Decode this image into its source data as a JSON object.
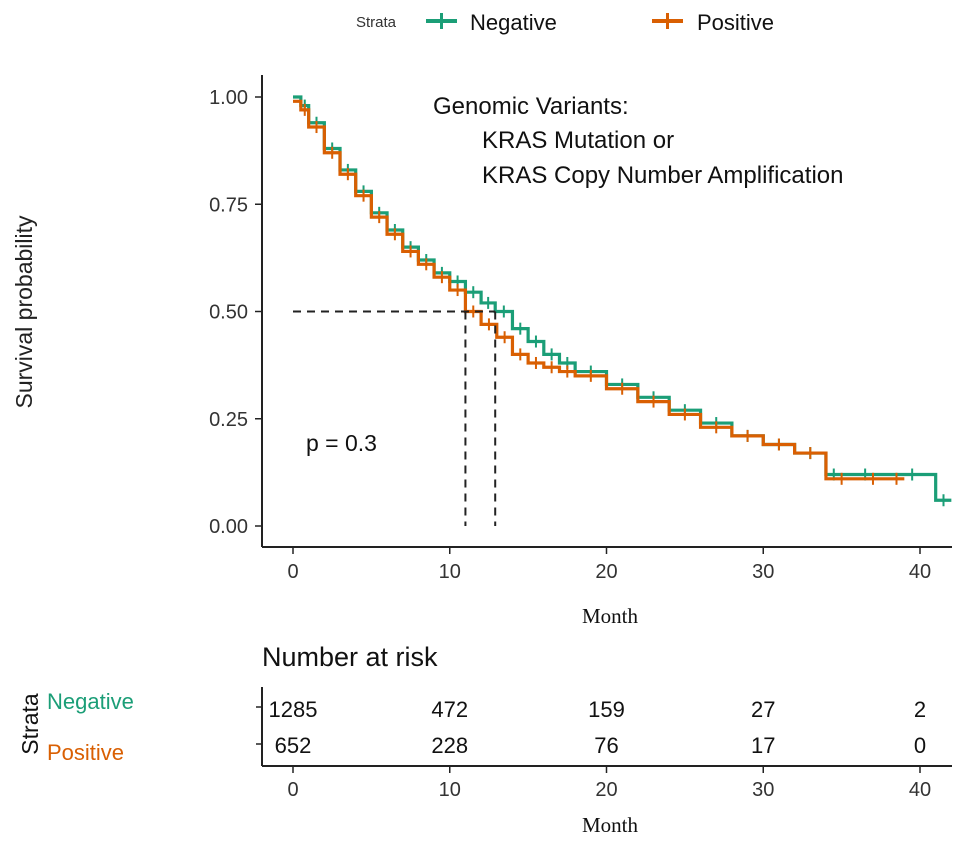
{
  "legend": {
    "title": "Strata",
    "items": [
      {
        "label": "Negative",
        "color": "#1b9e77"
      },
      {
        "label": "Positive",
        "color": "#d95f02"
      }
    ]
  },
  "chart_data": {
    "type": "line",
    "plot": "kaplan-meier",
    "annotation": {
      "line1": "Genomic Variants:",
      "line2": "KRAS Mutation or",
      "line3": "KRAS Copy Number Amplification"
    },
    "pvalue_text": "p = 0.3",
    "ylabel": "Survival probability",
    "xlabel": "Month",
    "xlim": [
      0,
      42
    ],
    "ylim": [
      0,
      1
    ],
    "xticks": [
      0,
      10,
      20,
      30,
      40
    ],
    "yticks": [
      0.0,
      0.25,
      0.5,
      0.75,
      1.0
    ],
    "ytick_labels": [
      "0.00",
      "0.25",
      "0.50",
      "0.75",
      "1.00"
    ],
    "median_survival": {
      "y": 0.5,
      "Negative": 12.9,
      "Positive": 11.0
    },
    "series": [
      {
        "name": "Negative",
        "color": "#1b9e77",
        "x": [
          0,
          0.5,
          1,
          2,
          3,
          4,
          5,
          6,
          7,
          8,
          9,
          10,
          11,
          12,
          12.9,
          14,
          15,
          16,
          17,
          18,
          20,
          22,
          24,
          26,
          28,
          30,
          32,
          34,
          35,
          38,
          41,
          42
        ],
        "y": [
          1.0,
          0.98,
          0.94,
          0.88,
          0.83,
          0.78,
          0.73,
          0.69,
          0.65,
          0.62,
          0.59,
          0.57,
          0.545,
          0.52,
          0.5,
          0.46,
          0.43,
          0.4,
          0.38,
          0.36,
          0.33,
          0.3,
          0.27,
          0.24,
          0.21,
          0.19,
          0.17,
          0.12,
          0.12,
          0.12,
          0.06,
          0.06
        ]
      },
      {
        "name": "Positive",
        "color": "#d95f02",
        "x": [
          0,
          0.5,
          1,
          2,
          3,
          4,
          5,
          6,
          7,
          8,
          9,
          10,
          11,
          12,
          13,
          14,
          15,
          16,
          17,
          18,
          20,
          22,
          24,
          26,
          28,
          30,
          32,
          34,
          36,
          38,
          39
        ],
        "y": [
          0.99,
          0.97,
          0.93,
          0.87,
          0.82,
          0.77,
          0.72,
          0.68,
          0.64,
          0.61,
          0.58,
          0.55,
          0.5,
          0.47,
          0.44,
          0.4,
          0.38,
          0.37,
          0.36,
          0.35,
          0.32,
          0.29,
          0.26,
          0.23,
          0.21,
          0.19,
          0.17,
          0.11,
          0.11,
          0.11,
          0.11
        ]
      }
    ]
  },
  "risk_table": {
    "title": "Number at risk",
    "strata_label": "Strata",
    "xlabel": "Month",
    "times": [
      0,
      10,
      20,
      30,
      40
    ],
    "rows": [
      {
        "label": "Negative",
        "color": "#1b9e77",
        "values": [
          "1285",
          "472",
          "159",
          "27",
          "2"
        ]
      },
      {
        "label": "Positive",
        "color": "#d95f02",
        "values": [
          "652",
          "228",
          "76",
          "17",
          "0"
        ]
      }
    ]
  }
}
